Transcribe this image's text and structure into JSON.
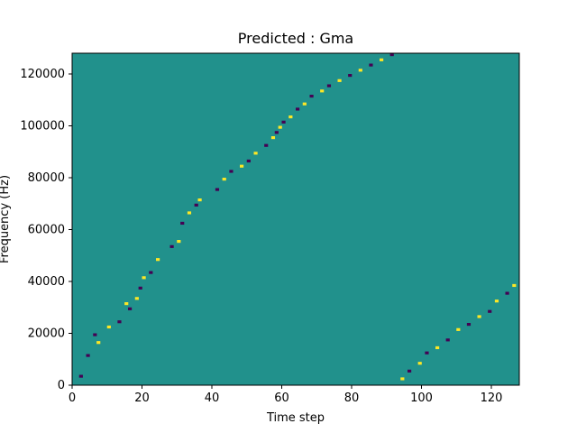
{
  "chart_data": {
    "type": "heatmap",
    "title": "Predicted : Gma",
    "xlabel": "Time step",
    "ylabel": "Frequency (Hz)",
    "xlim": [
      0,
      128
    ],
    "ylim": [
      0,
      128000
    ],
    "x_ticks": [
      0,
      20,
      40,
      60,
      80,
      100,
      120
    ],
    "y_ticks": [
      0,
      20000,
      40000,
      60000,
      80000,
      100000,
      120000
    ],
    "grid": false,
    "colors": {
      "background": "#21918c",
      "high": "#fde725",
      "low": "#440154"
    },
    "values_legend": {
      "background": 0,
      "high": 1,
      "low": -1
    },
    "cells": [
      [
        2,
        3,
        -1
      ],
      [
        4,
        11,
        -1
      ],
      [
        6,
        19,
        -1
      ],
      [
        7,
        16,
        1
      ],
      [
        10,
        22,
        1
      ],
      [
        13,
        24,
        -1
      ],
      [
        15,
        31,
        1
      ],
      [
        16,
        29,
        -1
      ],
      [
        18,
        33,
        1
      ],
      [
        19,
        37,
        -1
      ],
      [
        20,
        41,
        1
      ],
      [
        22,
        43,
        -1
      ],
      [
        24,
        48,
        1
      ],
      [
        28,
        53,
        -1
      ],
      [
        30,
        55,
        1
      ],
      [
        31,
        62,
        -1
      ],
      [
        33,
        66,
        1
      ],
      [
        35,
        69,
        -1
      ],
      [
        36,
        71,
        1
      ],
      [
        41,
        75,
        -1
      ],
      [
        43,
        79,
        1
      ],
      [
        45,
        82,
        -1
      ],
      [
        48,
        84,
        1
      ],
      [
        50,
        86,
        -1
      ],
      [
        52,
        89,
        1
      ],
      [
        55,
        92,
        -1
      ],
      [
        57,
        95,
        1
      ],
      [
        58,
        97,
        -1
      ],
      [
        59,
        99,
        1
      ],
      [
        60,
        101,
        -1
      ],
      [
        62,
        103,
        1
      ],
      [
        64,
        106,
        -1
      ],
      [
        66,
        108,
        1
      ],
      [
        68,
        111,
        -1
      ],
      [
        71,
        113,
        1
      ],
      [
        73,
        115,
        -1
      ],
      [
        76,
        117,
        1
      ],
      [
        79,
        119,
        -1
      ],
      [
        82,
        121,
        1
      ],
      [
        85,
        123,
        -1
      ],
      [
        88,
        125,
        1
      ],
      [
        91,
        127,
        -1
      ],
      [
        94,
        2,
        1
      ],
      [
        96,
        5,
        -1
      ],
      [
        99,
        8,
        1
      ],
      [
        101,
        12,
        -1
      ],
      [
        104,
        14,
        1
      ],
      [
        107,
        17,
        -1
      ],
      [
        110,
        21,
        1
      ],
      [
        113,
        23,
        -1
      ],
      [
        116,
        26,
        1
      ],
      [
        119,
        28,
        -1
      ],
      [
        121,
        32,
        1
      ],
      [
        124,
        35,
        -1
      ],
      [
        126,
        38,
        1
      ]
    ]
  }
}
